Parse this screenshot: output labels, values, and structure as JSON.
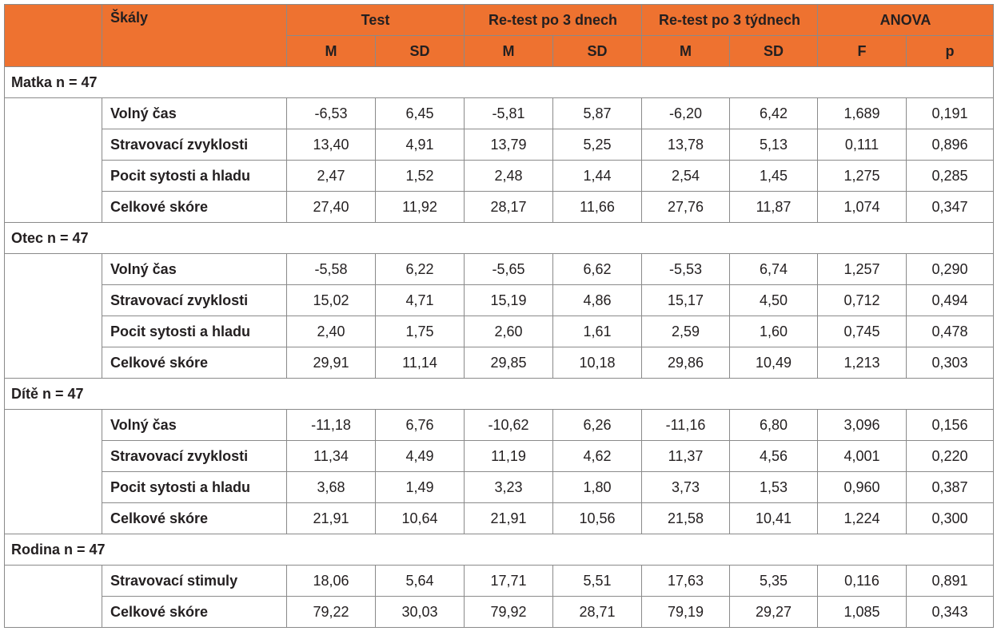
{
  "header": {
    "scales": "Škály",
    "groups": [
      "Test",
      "Re-test po 3 dnech",
      "Re-test po 3 týdnech",
      "ANOVA"
    ],
    "sub": [
      "M",
      "SD",
      "M",
      "SD",
      "M",
      "SD",
      "F",
      "p"
    ]
  },
  "groups": [
    {
      "title": "Matka n = 47",
      "rows": [
        {
          "label": "Volný čas",
          "values": [
            "-6,53",
            "6,45",
            "-5,81",
            "5,87",
            "-6,20",
            "6,42",
            "1,689",
            "0,191"
          ]
        },
        {
          "label": "Stravovací zvyklosti",
          "values": [
            "13,40",
            "4,91",
            "13,79",
            "5,25",
            "13,78",
            "5,13",
            "0,111",
            "0,896"
          ]
        },
        {
          "label": "Pocit sytosti a hladu",
          "values": [
            "2,47",
            "1,52",
            "2,48",
            "1,44",
            "2,54",
            "1,45",
            "1,275",
            "0,285"
          ]
        },
        {
          "label": "Celkové skóre",
          "values": [
            "27,40",
            "11,92",
            "28,17",
            "11,66",
            "27,76",
            "11,87",
            "1,074",
            "0,347"
          ]
        }
      ]
    },
    {
      "title": "Otec n = 47",
      "rows": [
        {
          "label": "Volný čas",
          "values": [
            "-5,58",
            "6,22",
            "-5,65",
            "6,62",
            "-5,53",
            "6,74",
            "1,257",
            "0,290"
          ]
        },
        {
          "label": "Stravovací zvyklosti",
          "values": [
            "15,02",
            "4,71",
            "15,19",
            "4,86",
            "15,17",
            "4,50",
            "0,712",
            "0,494"
          ]
        },
        {
          "label": "Pocit sytosti a hladu",
          "values": [
            "2,40",
            "1,75",
            "2,60",
            "1,61",
            "2,59",
            "1,60",
            "0,745",
            "0,478"
          ]
        },
        {
          "label": "Celkové skóre",
          "values": [
            "29,91",
            "11,14",
            "29,85",
            "10,18",
            "29,86",
            "10,49",
            "1,213",
            "0,303"
          ]
        }
      ]
    },
    {
      "title": "Dítě n = 47",
      "rows": [
        {
          "label": "Volný čas",
          "values": [
            "-11,18",
            "6,76",
            "-10,62",
            "6,26",
            "-11,16",
            "6,80",
            "3,096",
            "0,156"
          ]
        },
        {
          "label": "Stravovací zvyklosti",
          "values": [
            "11,34",
            "4,49",
            "11,19",
            "4,62",
            "11,37",
            "4,56",
            "4,001",
            "0,220"
          ]
        },
        {
          "label": "Pocit sytosti a hladu",
          "values": [
            "3,68",
            "1,49",
            "3,23",
            "1,80",
            "3,73",
            "1,53",
            "0,960",
            "0,387"
          ]
        },
        {
          "label": "Celkové skóre",
          "values": [
            "21,91",
            "10,64",
            "21,91",
            "10,56",
            "21,58",
            "10,41",
            "1,224",
            "0,300"
          ]
        }
      ]
    },
    {
      "title": "Rodina n = 47",
      "rows": [
        {
          "label": "Stravovací stimuly",
          "values": [
            "18,06",
            "5,64",
            "17,71",
            "5,51",
            "17,63",
            "5,35",
            "0,116",
            "0,891"
          ]
        },
        {
          "label": "Celkové skóre",
          "values": [
            "79,22",
            "30,03",
            "79,92",
            "28,71",
            "79,19",
            "29,27",
            "1,085",
            "0,343"
          ]
        }
      ]
    }
  ],
  "colors": {
    "header_bg": "#ee7230",
    "border": "#8a8a8a",
    "text": "#231f20"
  }
}
